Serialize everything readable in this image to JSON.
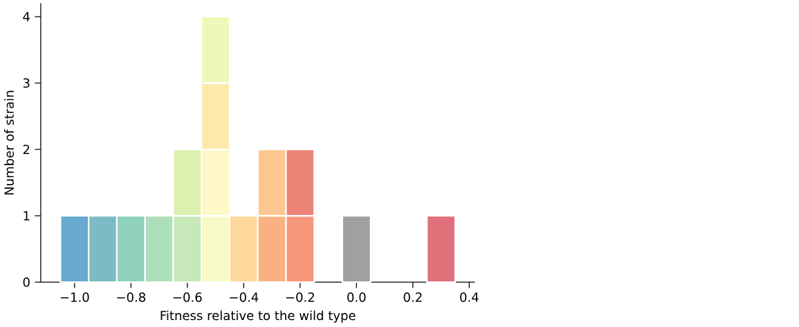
{
  "chart_data": {
    "type": "bar",
    "stacked": true,
    "xlabel": "Fitness relative to the wild type",
    "ylabel": "Number of strain",
    "x": [
      -1.0,
      -0.9,
      -0.8,
      -0.7,
      -0.6,
      -0.5,
      -0.4,
      -0.3,
      -0.2,
      0.0,
      0.3
    ],
    "series": [
      {
        "values": [
          1,
          1,
          1,
          1,
          1,
          1,
          1,
          1,
          1,
          1,
          1
        ],
        "colors": [
          "#67a9cf",
          "#7bbcc4",
          "#8fd1bb",
          "#addfbb",
          "#c7e8b8",
          "#f7fac7",
          "#fdd89a",
          "#f9b183",
          "#f7977a",
          "#a0a0a0",
          "#e07079"
        ]
      },
      {
        "values": [
          null,
          null,
          null,
          null,
          1,
          1,
          null,
          1,
          1,
          null,
          null
        ],
        "colors": [
          null,
          null,
          null,
          null,
          "#dcf0b0",
          "#fdf8c6",
          null,
          "#fdc791",
          "#ec8478",
          null,
          null
        ]
      },
      {
        "values": [
          null,
          null,
          null,
          null,
          null,
          1,
          null,
          null,
          null,
          null,
          null
        ],
        "colors": [
          null,
          null,
          null,
          null,
          null,
          "#fde9ac",
          null,
          null,
          null,
          null,
          null
        ]
      },
      {
        "values": [
          null,
          null,
          null,
          null,
          null,
          1,
          null,
          null,
          null,
          null,
          null
        ],
        "colors": [
          null,
          null,
          null,
          null,
          null,
          "#eff8b8",
          null,
          null,
          null,
          null,
          null
        ]
      }
    ],
    "xlim": [
      -1.12,
      0.42
    ],
    "ylim": [
      0,
      4.2
    ],
    "xticks": [
      {
        "value": -1.0,
        "label": "−1.0"
      },
      {
        "value": -0.8,
        "label": "−0.8"
      },
      {
        "value": -0.6,
        "label": "−0.6"
      },
      {
        "value": -0.4,
        "label": "−0.4"
      },
      {
        "value": -0.2,
        "label": "−0.2"
      },
      {
        "value": 0.0,
        "label": "0.0"
      },
      {
        "value": 0.2,
        "label": "0.2"
      },
      {
        "value": 0.4,
        "label": "0.4"
      }
    ],
    "yticks": [
      0,
      1,
      2,
      3,
      4
    ]
  }
}
